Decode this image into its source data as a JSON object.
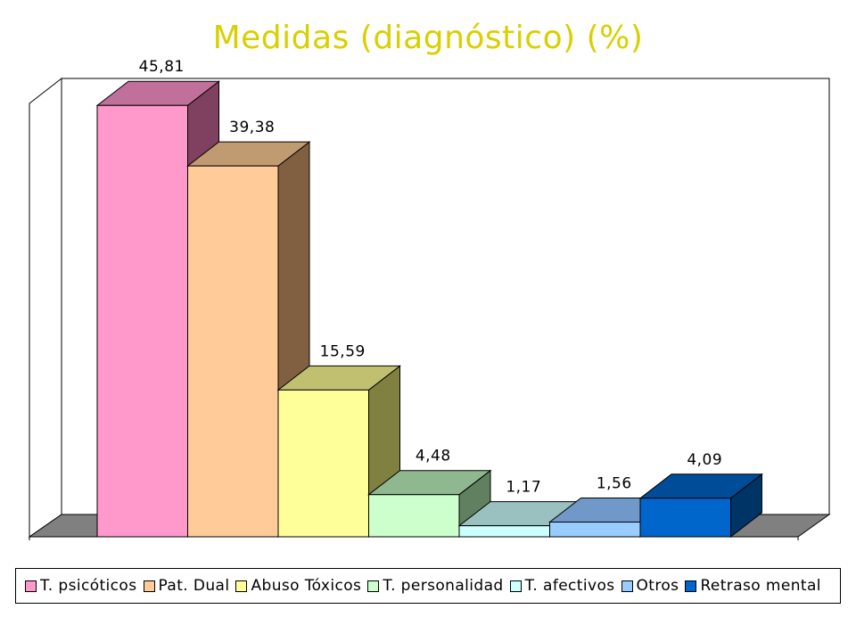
{
  "title": "Medidas (diagnóstico) (%)",
  "chart_data": {
    "type": "bar",
    "title": "Medidas (diagnóstico) (%)",
    "categories": [
      "T. psicóticos",
      "Pat. Dual",
      "Abuso Tóxicos",
      "T. personalidad",
      "T. afectivos",
      "Otros",
      "Retraso mental"
    ],
    "values": [
      45.81,
      39.38,
      15.59,
      4.48,
      1.17,
      1.56,
      4.09
    ],
    "value_labels": [
      "45,81",
      "39,38",
      "15,59",
      "4,48",
      "1,17",
      "1,56",
      "4,09"
    ],
    "ylim": [
      0,
      50
    ],
    "grid": false,
    "legend": "bottom",
    "colors": {
      "front": [
        "#ff99cc",
        "#ffcc99",
        "#ffff99",
        "#ccffcc",
        "#ccffff",
        "#99ccff",
        "#0066cc"
      ],
      "top": [
        "#c0709a",
        "#c09a70",
        "#c0c070",
        "#90b890",
        "#9ac0c0",
        "#7098c8",
        "#004c99"
      ],
      "side": [
        "#804060",
        "#806040",
        "#808040",
        "#608060",
        "#608080",
        "#406080",
        "#003366"
      ]
    }
  }
}
